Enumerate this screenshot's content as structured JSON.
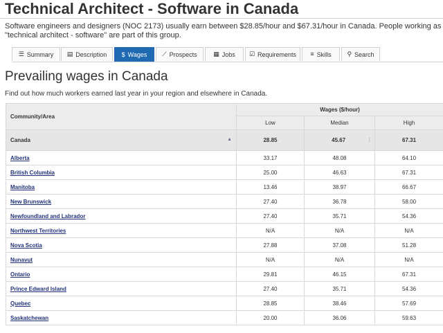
{
  "page": {
    "title": "Technical Architect - Software in Canada",
    "intro": "Software engineers and designers (NOC 2173) usually earn between $28.85/hour and $67.31/hour in Canada. People working as a \"technical architect - software\" are part of this group."
  },
  "tabs": [
    {
      "label": "Summary",
      "icon": "list-icon",
      "glyph": "☰"
    },
    {
      "label": "Description",
      "icon": "document-icon",
      "glyph": "▤"
    },
    {
      "label": "Wages",
      "icon": "dollar-icon",
      "glyph": "$"
    },
    {
      "label": "Prospects",
      "icon": "line-chart-icon",
      "glyph": "⟋"
    },
    {
      "label": "Jobs",
      "icon": "list-box-icon",
      "glyph": "▦"
    },
    {
      "label": "Requirements",
      "icon": "checkbox-icon",
      "glyph": "☑"
    },
    {
      "label": "Skills",
      "icon": "sliders-icon",
      "glyph": "≡"
    },
    {
      "label": "Search",
      "icon": "search-icon",
      "glyph": "⚲"
    }
  ],
  "active_tab": "Wages",
  "colors": {
    "accent": "#1f6ab2",
    "link": "#20337a",
    "header_bg": "#ececec"
  },
  "section": {
    "title": "Prevailing wages in Canada",
    "subtitle": "Find out how much workers earned last year in your region and elsewhere in Canada."
  },
  "table": {
    "col_community": "Community/Area",
    "col_group": "Wages ($/hour)",
    "col_low": "Low",
    "col_median": "Median",
    "col_high": "High",
    "canada": {
      "area": "Canada",
      "low": "28.85",
      "median": "45.67",
      "high": "67.31"
    },
    "rows": [
      {
        "area": "Alberta",
        "low": "33.17",
        "median": "48.08",
        "high": "64.10"
      },
      {
        "area": "British Columbia",
        "low": "25.00",
        "median": "46.63",
        "high": "67.31"
      },
      {
        "area": "Manitoba",
        "low": "13.46",
        "median": "38.97",
        "high": "66.67"
      },
      {
        "area": "New Brunswick",
        "low": "27.40",
        "median": "36.78",
        "high": "58.00"
      },
      {
        "area": "Newfoundland and Labrador",
        "low": "27.40",
        "median": "35.71",
        "high": "54.36"
      },
      {
        "area": "Northwest Territories",
        "low": "N/A",
        "median": "N/A",
        "high": "N/A"
      },
      {
        "area": "Nova Scotia",
        "low": "27.88",
        "median": "37.08",
        "high": "51.28"
      },
      {
        "area": "Nunavut",
        "low": "N/A",
        "median": "N/A",
        "high": "N/A"
      },
      {
        "area": "Ontario",
        "low": "29.81",
        "median": "46.15",
        "high": "67.31"
      },
      {
        "area": "Prince Edward Island",
        "low": "27.40",
        "median": "35.71",
        "high": "54.36"
      },
      {
        "area": "Quebec",
        "low": "28.85",
        "median": "38.46",
        "high": "57.69"
      },
      {
        "area": "Saskatchewan",
        "low": "20.00",
        "median": "36.06",
        "high": "59.63"
      }
    ]
  }
}
